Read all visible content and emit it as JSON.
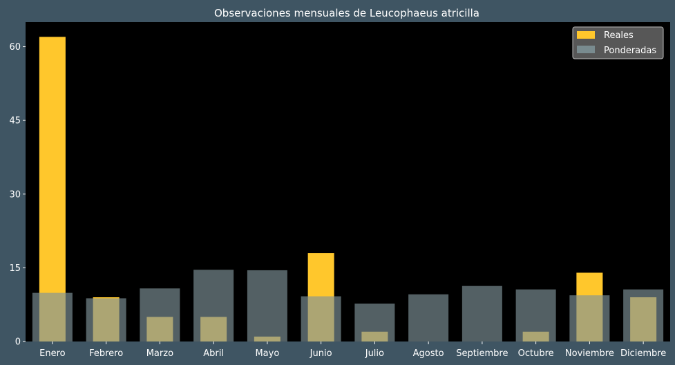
{
  "chart_data": {
    "type": "bar",
    "title": "Observaciones mensuales de Leucophaeus atricilla",
    "xlabel": "",
    "ylabel": "",
    "categories": [
      "Enero",
      "Febrero",
      "Marzo",
      "Abril",
      "Mayo",
      "Junio",
      "Julio",
      "Agosto",
      "Septiembre",
      "Octubre",
      "Noviembre",
      "Diciembre"
    ],
    "series": [
      {
        "name": "Reales",
        "values": [
          62,
          9,
          5,
          5,
          1,
          18,
          2,
          0,
          0,
          2,
          14,
          9
        ],
        "color": "#ffc72c"
      },
      {
        "name": "Ponderadas",
        "values": [
          9.9,
          8.8,
          10.8,
          14.6,
          14.5,
          9.2,
          7.7,
          9.6,
          11.3,
          10.6,
          9.4,
          10.6
        ],
        "color": "#7f9499"
      }
    ],
    "ylim": [
      0,
      65
    ],
    "yticks": [
      0,
      15,
      30,
      45,
      60
    ],
    "legend": "top-right",
    "grid": false,
    "plot_background": "#000000",
    "figure_background": "#3f5563"
  }
}
